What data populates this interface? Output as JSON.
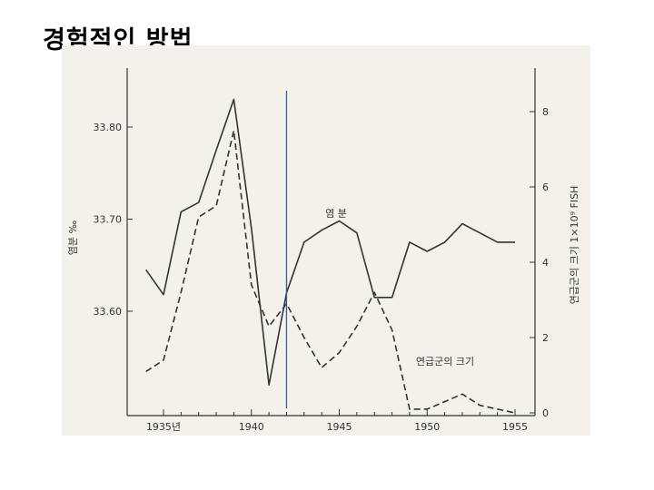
{
  "slide": {
    "title": "경험적인 방법"
  },
  "chart_data": {
    "type": "line",
    "x_categories": [
      "1935년",
      "1940",
      "1945",
      "1950",
      "1955"
    ],
    "xlim": [
      1934,
      1955
    ],
    "xticks": [
      1935,
      1940,
      1945,
      1950,
      1955
    ],
    "y_left": {
      "label": "염분 ‰",
      "ylim": [
        33.52,
        33.87
      ],
      "ticks": [
        "33.80",
        "33.70",
        "33.60"
      ],
      "tick_values": [
        33.8,
        33.7,
        33.6
      ]
    },
    "y_right": {
      "label": "연급군의 크기 1×10⁹ FISH",
      "ylim": [
        0,
        8.2
      ],
      "ticks": [
        "0",
        "2",
        "4",
        "6",
        "8"
      ],
      "tick_values": [
        0,
        2,
        4,
        6,
        8
      ]
    },
    "series": [
      {
        "name": "염 분",
        "axis": "left",
        "style": "solid",
        "x": [
          1934,
          1935,
          1936,
          1937,
          1938,
          1939,
          1940,
          1941,
          1942,
          1943,
          1944,
          1945,
          1946,
          1947,
          1948,
          1949,
          1950,
          1951,
          1952,
          1953,
          1954,
          1955
        ],
        "values": [
          33.645,
          33.618,
          33.708,
          33.718,
          33.775,
          33.83,
          33.69,
          33.52,
          33.62,
          33.675,
          33.688,
          33.698,
          33.685,
          33.615,
          33.615,
          33.675,
          33.665,
          33.675,
          33.695,
          33.685,
          33.675,
          33.675
        ]
      },
      {
        "name": "연급군의 크기",
        "axis": "right",
        "style": "dashed",
        "x": [
          1934,
          1935,
          1936,
          1937,
          1938,
          1939,
          1940,
          1941,
          1942,
          1943,
          1944,
          1945,
          1946,
          1947,
          1948,
          1949,
          1950,
          1951,
          1952,
          1953,
          1954,
          1955
        ],
        "values": [
          1.1,
          1.4,
          3.2,
          5.2,
          5.5,
          7.5,
          3.4,
          2.3,
          2.9,
          2.0,
          1.2,
          1.6,
          2.3,
          3.2,
          2.2,
          0.1,
          0.1,
          0.3,
          0.5,
          0.2,
          0.1,
          0.0
        ]
      }
    ],
    "annotations": [
      {
        "text": "염 분",
        "target": "solid"
      },
      {
        "text": "연급군의 크기",
        "target": "dashed"
      }
    ],
    "marker_line": {
      "x": 1942,
      "color": "#2c5fa8"
    },
    "colors": {
      "line": "#333333",
      "marker": "#2c5fa8",
      "background": "#f4f1ea"
    }
  }
}
